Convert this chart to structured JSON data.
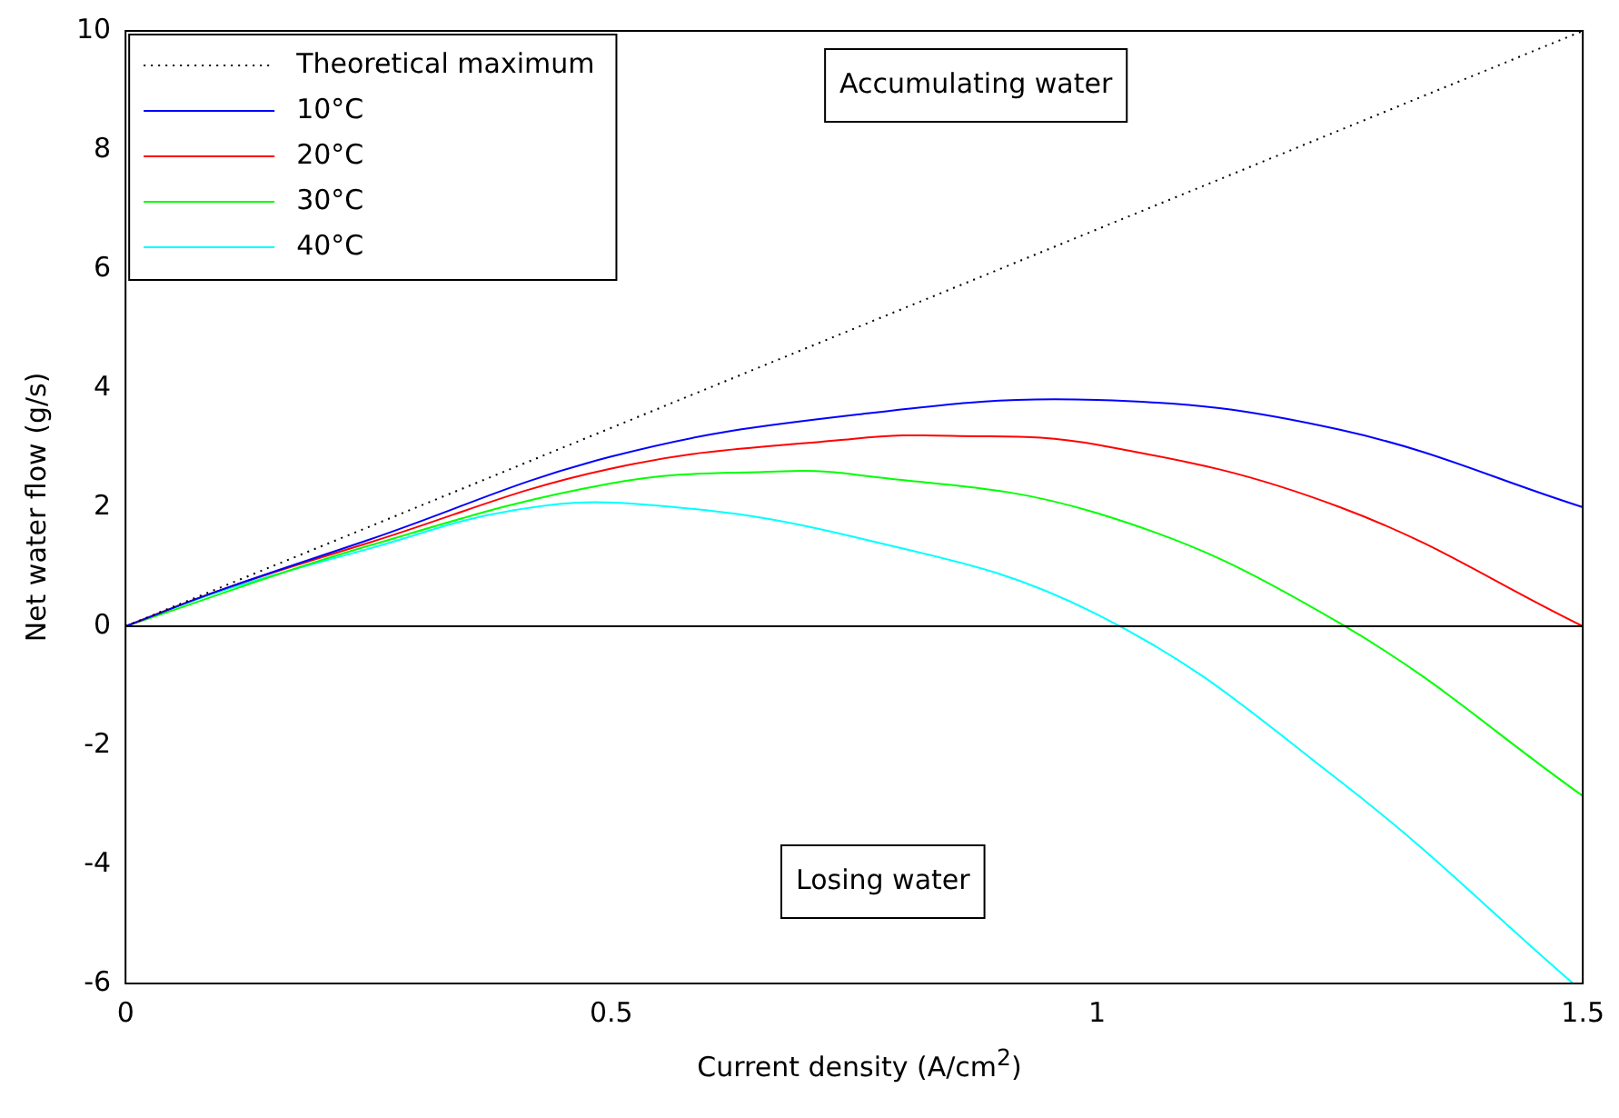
{
  "chart_data": {
    "type": "line",
    "xlabel": "Current density (A/cm$^{2}$)",
    "ylabel": "Net water flow (g/s)",
    "xlim": [
      0,
      1.5
    ],
    "xticks": [
      0,
      0.5,
      1,
      1.5
    ],
    "ylim": [
      -6,
      10
    ],
    "yticks": [
      -6,
      -4,
      -2,
      0,
      2,
      4,
      6,
      8,
      10
    ],
    "grid": false,
    "legend": "top left",
    "marker": "none",
    "series": [
      {
        "name": "Theoretical maximum",
        "color": "#000000",
        "line_style": "dotted",
        "x": [
          0,
          1.5
        ],
        "values": [
          0,
          10
        ]
      },
      {
        "name": "10°C",
        "color": "#0000ff",
        "x": [
          0,
          0.1,
          0.25,
          0.5,
          0.75,
          1.0,
          1.25,
          1.5
        ],
        "values": [
          0,
          0.62,
          1.45,
          2.85,
          3.55,
          3.8,
          3.3,
          2.0
        ]
      },
      {
        "name": "20°C",
        "color": "#ff0000",
        "x": [
          0,
          0.1,
          0.25,
          0.5,
          0.75,
          0.85,
          1.0,
          1.25,
          1.5
        ],
        "values": [
          0,
          0.62,
          1.4,
          2.65,
          3.15,
          3.2,
          3.05,
          2.0,
          0
        ]
      },
      {
        "name": "30°C",
        "color": "#00ff00",
        "x": [
          0,
          0.25,
          0.5,
          0.67,
          0.75,
          1.0,
          1.25,
          1.5
        ],
        "values": [
          0,
          1.35,
          2.4,
          2.6,
          2.55,
          1.9,
          0.05,
          -2.85
        ]
      },
      {
        "name": "40°C",
        "color": "#00ffff",
        "x": [
          0,
          0.1,
          0.25,
          0.4,
          0.53,
          0.75,
          1.0,
          1.25,
          1.49
        ],
        "values": [
          0,
          0.6,
          1.3,
          1.95,
          2.05,
          1.5,
          0.2,
          -2.6,
          -6
        ]
      }
    ],
    "ref_lines": [
      {
        "axis": "y",
        "value": 0,
        "color": "#000000"
      }
    ],
    "annotations": [
      "Accumulating water",
      "Losing water"
    ]
  }
}
